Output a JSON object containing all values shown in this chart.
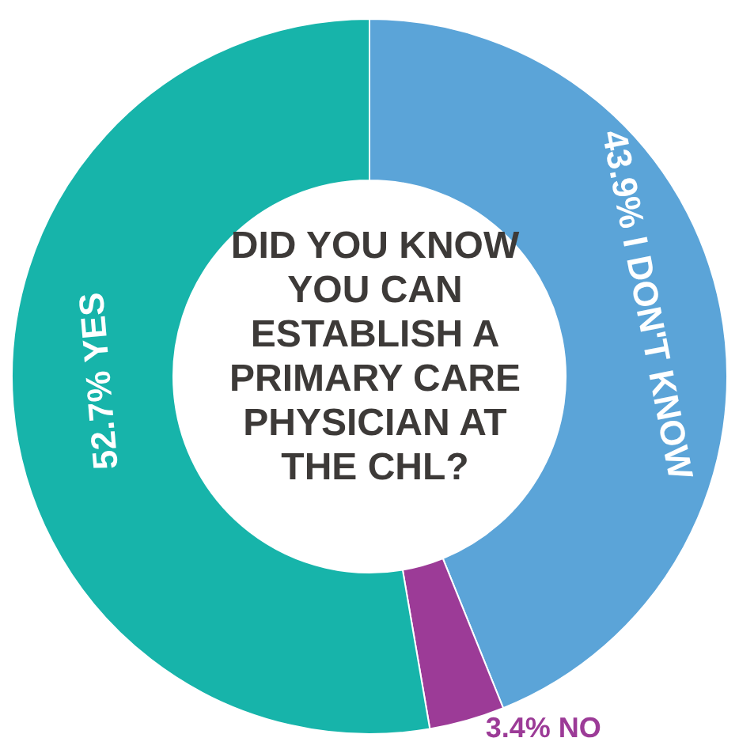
{
  "chart_data": {
    "type": "donut",
    "title": "DID YOU KNOW YOU CAN ESTABLISH A PRIMARY CARE PHYSICIAN AT THE CHL?",
    "categories": [
      "I DON'T KNOW",
      "NO",
      "YES"
    ],
    "values": [
      43.9,
      3.4,
      52.7
    ],
    "colors": [
      "#5ba4d8",
      "#9c3b97",
      "#17b4aa"
    ],
    "value_labels": [
      "43.9%",
      "3.4%",
      "52.7%"
    ]
  }
}
